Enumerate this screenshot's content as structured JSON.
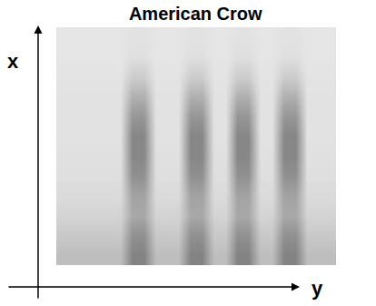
{
  "chart_data": {
    "type": "heatmap",
    "title": "American Crow",
    "xlabel": "y",
    "ylabel": "x",
    "tick_labels": false,
    "grid": false,
    "cells": [
      [
        0.3,
        0.3,
        0.3,
        0.3,
        0.3,
        0.3,
        0.62,
        0.62,
        0.3,
        0.3,
        0.3,
        0.62,
        0.62,
        0.3,
        0.3,
        0.62,
        0.62,
        0.3,
        0.3,
        0.62,
        0.62,
        0.3,
        0.3,
        0.3
      ],
      [
        0.24,
        0.24,
        0.24,
        0.24,
        0.24,
        0.24,
        0.55,
        0.55,
        0.24,
        0.24,
        0.24,
        0.55,
        0.55,
        0.24,
        0.24,
        0.55,
        0.55,
        0.24,
        0.24,
        0.55,
        0.55,
        0.24,
        0.24,
        0.24
      ],
      [
        0.18,
        0.18,
        0.18,
        0.18,
        0.18,
        0.18,
        0.42,
        0.42,
        0.18,
        0.18,
        0.18,
        0.42,
        0.42,
        0.18,
        0.18,
        0.42,
        0.42,
        0.18,
        0.18,
        0.42,
        0.42,
        0.18,
        0.18,
        0.18
      ],
      [
        0.14,
        0.14,
        0.14,
        0.14,
        0.14,
        0.14,
        0.45,
        0.45,
        0.14,
        0.14,
        0.14,
        0.45,
        0.45,
        0.14,
        0.14,
        0.45,
        0.45,
        0.14,
        0.14,
        0.45,
        0.45,
        0.14,
        0.14,
        0.14
      ],
      [
        0.12,
        0.12,
        0.12,
        0.12,
        0.12,
        0.12,
        0.55,
        0.55,
        0.12,
        0.12,
        0.12,
        0.55,
        0.55,
        0.12,
        0.12,
        0.55,
        0.55,
        0.12,
        0.12,
        0.55,
        0.55,
        0.12,
        0.12,
        0.12
      ],
      [
        0.11,
        0.11,
        0.11,
        0.11,
        0.11,
        0.11,
        0.6,
        0.6,
        0.11,
        0.11,
        0.11,
        0.6,
        0.6,
        0.11,
        0.11,
        0.6,
        0.6,
        0.11,
        0.11,
        0.6,
        0.6,
        0.11,
        0.11,
        0.11
      ],
      [
        0.1,
        0.1,
        0.1,
        0.1,
        0.1,
        0.1,
        0.6,
        0.6,
        0.1,
        0.1,
        0.1,
        0.6,
        0.6,
        0.1,
        0.1,
        0.6,
        0.6,
        0.1,
        0.1,
        0.6,
        0.6,
        0.1,
        0.1,
        0.1
      ],
      [
        0.1,
        0.1,
        0.1,
        0.1,
        0.1,
        0.1,
        0.52,
        0.52,
        0.1,
        0.1,
        0.1,
        0.52,
        0.52,
        0.1,
        0.1,
        0.52,
        0.52,
        0.1,
        0.1,
        0.52,
        0.52,
        0.1,
        0.1,
        0.1
      ],
      [
        0.1,
        0.1,
        0.1,
        0.1,
        0.1,
        0.1,
        0.38,
        0.38,
        0.1,
        0.1,
        0.1,
        0.38,
        0.38,
        0.1,
        0.1,
        0.38,
        0.38,
        0.1,
        0.1,
        0.38,
        0.38,
        0.1,
        0.1,
        0.1
      ],
      [
        0.09,
        0.09,
        0.09,
        0.09,
        0.09,
        0.09,
        0.22,
        0.22,
        0.09,
        0.09,
        0.09,
        0.22,
        0.22,
        0.09,
        0.09,
        0.22,
        0.22,
        0.09,
        0.09,
        0.22,
        0.22,
        0.09,
        0.09,
        0.09
      ],
      [
        0.08,
        0.08,
        0.08,
        0.08,
        0.08,
        0.08,
        0.12,
        0.12,
        0.08,
        0.08,
        0.08,
        0.12,
        0.12,
        0.08,
        0.08,
        0.12,
        0.12,
        0.08,
        0.08,
        0.12,
        0.12,
        0.08,
        0.08,
        0.08
      ],
      [
        0.08,
        0.08,
        0.08,
        0.08,
        0.08,
        0.08,
        0.1,
        0.1,
        0.08,
        0.08,
        0.08,
        0.1,
        0.1,
        0.08,
        0.08,
        0.1,
        0.1,
        0.08,
        0.08,
        0.1,
        0.1,
        0.08,
        0.08,
        0.08
      ]
    ]
  }
}
